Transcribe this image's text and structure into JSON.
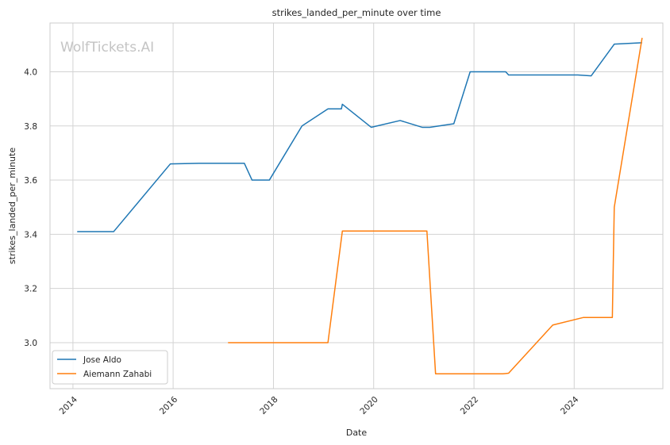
{
  "chart_data": {
    "type": "line",
    "title": "strikes_landed_per_minute over time",
    "xlabel": "Date",
    "ylabel": "strikes_landed_per_minute",
    "watermark": "WolfTickets.AI",
    "x_ticks": [
      "2014",
      "2016",
      "2018",
      "2020",
      "2022",
      "2024"
    ],
    "y_ticks": [
      "3.0",
      "3.2",
      "3.4",
      "3.6",
      "3.8",
      "4.0"
    ],
    "xlim": [
      "2013-07-18",
      "2025-10-08"
    ],
    "ylim": [
      2.83,
      4.18
    ],
    "grid": true,
    "legend_position": "lower-left",
    "series": [
      {
        "name": "Jose Aldo",
        "color": "#1f77b4",
        "points": [
          {
            "x": "2014-02-01",
            "y": 3.41
          },
          {
            "x": "2014-10-25",
            "y": 3.41
          },
          {
            "x": "2015-12-12",
            "y": 3.66
          },
          {
            "x": "2016-07-09",
            "y": 3.662
          },
          {
            "x": "2017-06-03",
            "y": 3.662
          },
          {
            "x": "2017-07-29",
            "y": 3.6
          },
          {
            "x": "2017-12-02",
            "y": 3.6
          },
          {
            "x": "2018-07-28",
            "y": 3.8
          },
          {
            "x": "2019-02-02",
            "y": 3.863
          },
          {
            "x": "2019-05-11",
            "y": 3.863
          },
          {
            "x": "2019-05-18",
            "y": 3.88
          },
          {
            "x": "2019-12-14",
            "y": 3.795
          },
          {
            "x": "2020-07-12",
            "y": 3.82
          },
          {
            "x": "2020-12-19",
            "y": 3.795
          },
          {
            "x": "2021-02-13",
            "y": 3.795
          },
          {
            "x": "2021-08-07",
            "y": 3.808
          },
          {
            "x": "2021-12-04",
            "y": 4.0
          },
          {
            "x": "2022-08-20",
            "y": 4.0
          },
          {
            "x": "2022-09-10",
            "y": 3.988
          },
          {
            "x": "2024-01-27",
            "y": 3.988
          },
          {
            "x": "2024-05-04",
            "y": 3.985
          },
          {
            "x": "2024-10-19",
            "y": 4.102
          },
          {
            "x": "2025-05-10",
            "y": 4.107
          }
        ]
      },
      {
        "name": "Aiemann Zahabi",
        "color": "#ff7f0e",
        "points": [
          {
            "x": "2017-02-04",
            "y": 3.0
          },
          {
            "x": "2019-02-02",
            "y": 3.0
          },
          {
            "x": "2019-05-18",
            "y": 3.412
          },
          {
            "x": "2021-01-23",
            "y": 3.412
          },
          {
            "x": "2021-03-27",
            "y": 2.885
          },
          {
            "x": "2022-07-30",
            "y": 2.885
          },
          {
            "x": "2022-09-10",
            "y": 2.887
          },
          {
            "x": "2023-07-29",
            "y": 3.065
          },
          {
            "x": "2024-03-09",
            "y": 3.093
          },
          {
            "x": "2024-10-05",
            "y": 3.093
          },
          {
            "x": "2024-10-19",
            "y": 3.5
          },
          {
            "x": "2025-05-10",
            "y": 4.125
          }
        ]
      }
    ]
  }
}
